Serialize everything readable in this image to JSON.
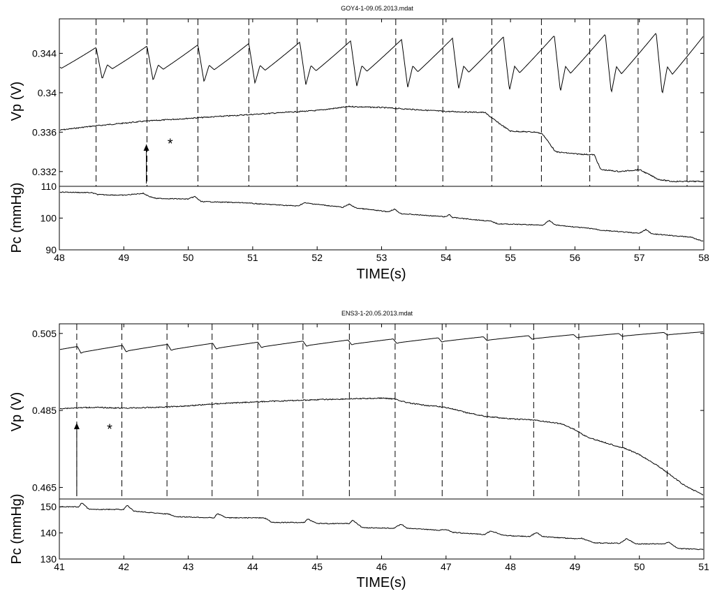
{
  "chart_data": [
    {
      "type": "line",
      "title": "GOY4-1-09.05.2013.mdat",
      "xlabel": "TIME(s)",
      "xlim": [
        48,
        58
      ],
      "x_ticks": [
        "48",
        "49",
        "50",
        "51",
        "52",
        "53",
        "54",
        "55",
        "56",
        "57",
        "58"
      ],
      "top_panel": {
        "ylabel": "Vp (V)",
        "ylim": [
          0.3305,
          0.3475
        ],
        "y_ticks": [
          "0.332",
          "0.336",
          "0.34",
          "0.344"
        ],
        "pulsatile_series": {
          "period_s": 0.79,
          "phase_s": 48.57,
          "x": [
            48.0,
            58.0
          ],
          "upper": [
            0.3445,
            0.3462
          ],
          "lower": [
            0.3415,
            0.3397
          ]
        },
        "baseline_series": {
          "x": [
            48.0,
            48.5,
            49.3,
            50.0,
            51.0,
            52.0,
            52.5,
            53.0,
            53.5,
            54.0,
            54.6,
            54.8,
            55.0,
            55.4,
            55.5,
            55.7,
            56.0,
            56.3,
            56.4,
            56.7,
            57.0,
            57.3,
            57.5,
            58.0
          ],
          "y": [
            0.3362,
            0.3366,
            0.3371,
            0.3374,
            0.3378,
            0.3382,
            0.3386,
            0.3385,
            0.3383,
            0.3381,
            0.338,
            0.337,
            0.3361,
            0.336,
            0.3358,
            0.334,
            0.3338,
            0.3337,
            0.3322,
            0.332,
            0.3322,
            0.3312,
            0.331,
            0.331
          ]
        },
        "beat_markers_s": [
          48.57,
          49.36,
          50.15,
          50.94,
          51.69,
          52.45,
          53.22,
          53.95,
          54.71,
          55.48,
          56.23,
          56.98,
          57.74
        ],
        "arrow_x_s": 49.35,
        "asterisk": {
          "text": "*",
          "x": 49.72,
          "y": 0.3348
        }
      },
      "bottom_panel": {
        "ylabel": "Pc (mmHg)",
        "ylim": [
          90,
          110
        ],
        "y_ticks": [
          "90",
          "100",
          "110"
        ],
        "series": {
          "x": [
            48.0,
            48.5,
            48.6,
            49.0,
            49.3,
            49.4,
            49.5,
            50.0,
            50.1,
            50.2,
            50.9,
            51.0,
            51.7,
            51.8,
            52.4,
            52.5,
            52.6,
            53.1,
            53.2,
            53.3,
            54.0,
            54.05,
            54.1,
            54.7,
            54.8,
            55.5,
            55.6,
            55.7,
            56.3,
            56.4,
            57.0,
            57.1,
            57.2,
            57.8,
            58.0
          ],
          "y": [
            108.2,
            108.0,
            107.4,
            107.2,
            107.8,
            106.8,
            106.2,
            106.0,
            106.8,
            105.2,
            104.8,
            104.6,
            103.8,
            104.8,
            103.4,
            104.4,
            103.2,
            102.0,
            102.8,
            101.4,
            100.4,
            101.2,
            100.2,
            99.0,
            98.2,
            97.8,
            99.2,
            97.8,
            96.6,
            96.2,
            95.2,
            96.4,
            95.0,
            94.0,
            92.6
          ]
        }
      }
    },
    {
      "type": "line",
      "title": "ENS3-1-20.05.2013.mdat",
      "xlabel": "TIME(s)",
      "xlim": [
        41,
        51
      ],
      "x_ticks": [
        "41",
        "42",
        "43",
        "44",
        "45",
        "46",
        "47",
        "48",
        "49",
        "50",
        "51"
      ],
      "top_panel": {
        "ylabel": "Vp (V)",
        "ylim": [
          0.462,
          0.5075
        ],
        "y_ticks": [
          "0.465",
          "0.485",
          "0.505"
        ],
        "pulsatile_series": {
          "period_s": 0.7,
          "phase_s": 41.28,
          "x": [
            41.0,
            51.0
          ],
          "upper": [
            0.5015,
            0.5055
          ],
          "lower": [
            0.4995,
            0.5048
          ]
        },
        "baseline_series": {
          "x": [
            41.0,
            41.5,
            42.0,
            42.5,
            43.0,
            43.5,
            44.0,
            44.5,
            45.0,
            45.5,
            46.0,
            46.2,
            46.4,
            46.6,
            47.0,
            47.3,
            47.6,
            48.0,
            48.3,
            48.5,
            48.8,
            49.0,
            49.2,
            49.6,
            49.8,
            50.0,
            50.3,
            50.5,
            50.7,
            51.0
          ],
          "y": [
            0.4855,
            0.4858,
            0.4856,
            0.4858,
            0.4862,
            0.4868,
            0.4872,
            0.4875,
            0.4878,
            0.488,
            0.4882,
            0.488,
            0.487,
            0.4865,
            0.4858,
            0.4845,
            0.4835,
            0.4828,
            0.4826,
            0.4822,
            0.4815,
            0.48,
            0.478,
            0.476,
            0.475,
            0.4735,
            0.4705,
            0.468,
            0.4655,
            0.463
          ]
        },
        "beat_markers_s": [
          41.27,
          41.97,
          42.67,
          43.37,
          44.08,
          44.78,
          45.5,
          46.21,
          46.94,
          47.64,
          48.36,
          49.06,
          49.74,
          50.43
        ],
        "arrow_x_s": 41.27,
        "asterisk": {
          "text": "*",
          "x": 41.78,
          "y": 0.48
        }
      },
      "bottom_panel": {
        "ylabel": "Pc (mmHg)",
        "ylim": [
          130,
          153
        ],
        "y_ticks": [
          "130",
          "140",
          "150"
        ],
        "series": {
          "x": [
            41.0,
            41.3,
            41.35,
            41.45,
            41.5,
            42.0,
            42.05,
            42.15,
            42.6,
            42.7,
            42.8,
            43.4,
            43.45,
            43.6,
            44.1,
            44.2,
            44.3,
            44.8,
            44.85,
            45.0,
            45.5,
            45.55,
            45.7,
            46.2,
            46.3,
            46.4,
            46.9,
            47.0,
            47.1,
            47.6,
            47.7,
            47.9,
            48.3,
            48.4,
            48.5,
            49.0,
            49.1,
            49.3,
            49.7,
            49.8,
            49.95,
            50.4,
            50.45,
            50.6,
            51.0
          ],
          "y": [
            150.0,
            150.0,
            151.6,
            149.2,
            149.0,
            149.0,
            150.6,
            148.4,
            147.4,
            147.2,
            146.2,
            145.8,
            147.4,
            145.8,
            145.8,
            145.6,
            144.0,
            144.0,
            145.4,
            143.6,
            143.6,
            145.0,
            142.0,
            141.8,
            143.4,
            141.8,
            141.0,
            141.4,
            140.2,
            139.4,
            140.8,
            139.0,
            138.6,
            140.2,
            138.6,
            137.8,
            138.0,
            136.2,
            136.0,
            137.8,
            135.8,
            135.8,
            136.6,
            134.0,
            133.6
          ]
        }
      }
    }
  ]
}
